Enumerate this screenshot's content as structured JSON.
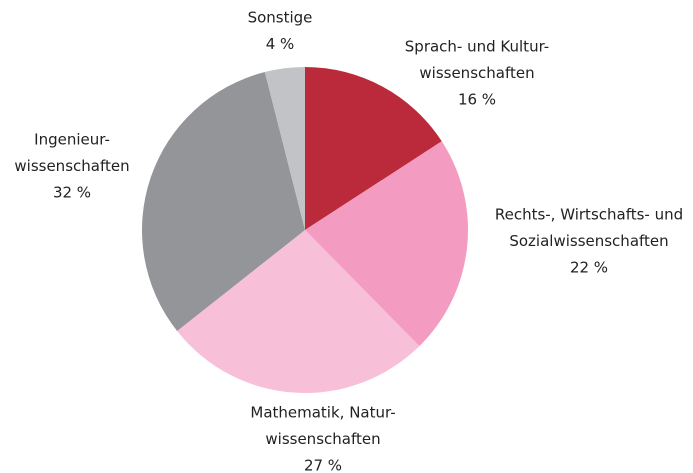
{
  "chart_data": {
    "type": "pie",
    "categories": [
      [
        "Sprach- und Kultur-",
        "wissenschaften"
      ],
      [
        "Rechts-, Wirtschafts- und",
        "Sozialwissenschaften"
      ],
      [
        "Mathematik, Natur-",
        "wissenschaften"
      ],
      [
        "Ingenieur-",
        "wissenschaften"
      ],
      [
        "Sonstige"
      ]
    ],
    "values": [
      16,
      22,
      27,
      32,
      4
    ],
    "value_labels": [
      "16 %",
      "22 %",
      "27 %",
      "32 %",
      "4 %"
    ],
    "colors": [
      "#bb2a3a",
      "#f39bc0",
      "#f7c0d8",
      "#939598",
      "#c2c3c6"
    ]
  }
}
